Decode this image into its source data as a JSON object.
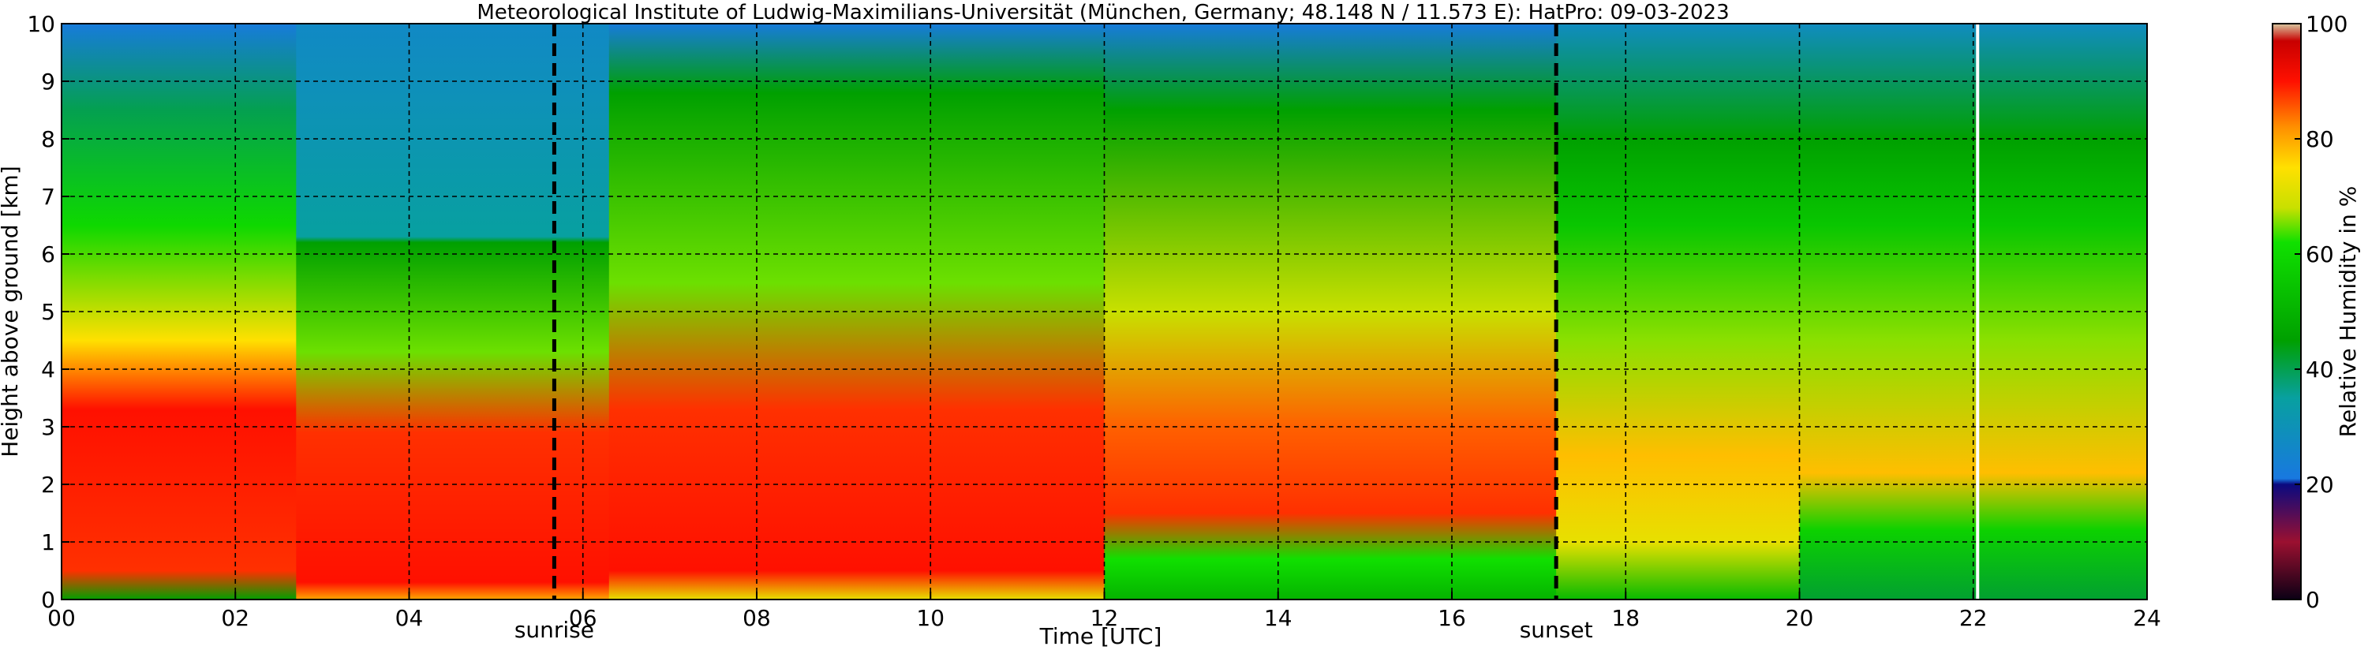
{
  "chart_data": {
    "type": "heatmap",
    "title": "Meteorological Institute of Ludwig-Maximilians-Universität (München, Germany; 48.148 N / 11.573 E):    HatPro: 09-03-2023",
    "xlabel": "Time [UTC]",
    "ylabel": "Height above ground [km]",
    "xlim": [
      0,
      24
    ],
    "ylim": [
      0,
      10
    ],
    "x_ticks": [
      "00",
      "02",
      "04",
      "06",
      "08",
      "10",
      "12",
      "14",
      "16",
      "18",
      "20",
      "22",
      "24"
    ],
    "y_ticks": [
      "0",
      "1",
      "2",
      "3",
      "4",
      "5",
      "6",
      "7",
      "8",
      "9",
      "10"
    ],
    "grid": true,
    "colorbar": {
      "label": "Relative Humidity in %",
      "range": [
        0,
        100
      ],
      "ticks": [
        "0",
        "20",
        "40",
        "60",
        "80",
        "100"
      ]
    },
    "annotations": [
      {
        "label": "sunrise",
        "x_hours": 5.67
      },
      {
        "label": "sunset",
        "x_hours": 17.2
      }
    ],
    "missing_data_line_x_hours": 22.05,
    "humidity_bands_by_period": [
      {
        "from_hours": 0.0,
        "to_hours": 2.7,
        "rh_profile": [
          {
            "height_km": 0,
            "rh": 45
          },
          {
            "height_km": 0.5,
            "rh": 88
          },
          {
            "height_km": 3.3,
            "rh": 90
          },
          {
            "height_km": 4.5,
            "rh": 75
          },
          {
            "height_km": 6.5,
            "rh": 60
          },
          {
            "height_km": 8.5,
            "rh": 40
          },
          {
            "height_km": 10,
            "rh": 22
          }
        ]
      },
      {
        "from_hours": 2.7,
        "to_hours": 6.3,
        "rh_profile": [
          {
            "height_km": 0,
            "rh": 80
          },
          {
            "height_km": 0.3,
            "rh": 90
          },
          {
            "height_km": 2.9,
            "rh": 88
          },
          {
            "height_km": 4.3,
            "rh": 65
          },
          {
            "height_km": 6.2,
            "rh": 45
          },
          {
            "height_km": 6.3,
            "rh": 35
          },
          {
            "height_km": 10,
            "rh": 27
          }
        ]
      },
      {
        "from_hours": 6.3,
        "to_hours": 12.0,
        "rh_profile": [
          {
            "height_km": 0,
            "rh": 72
          },
          {
            "height_km": 0.5,
            "rh": 90
          },
          {
            "height_km": 3.3,
            "rh": 88
          },
          {
            "height_km": 5.5,
            "rh": 65
          },
          {
            "height_km": 8.8,
            "rh": 45
          },
          {
            "height_km": 10,
            "rh": 22
          }
        ]
      },
      {
        "from_hours": 12.0,
        "to_hours": 17.2,
        "rh_profile": [
          {
            "height_km": 0,
            "rh": 50
          },
          {
            "height_km": 0.7,
            "rh": 62
          },
          {
            "height_km": 1.5,
            "rh": 88
          },
          {
            "height_km": 3.0,
            "rh": 85
          },
          {
            "height_km": 5.0,
            "rh": 68
          },
          {
            "height_km": 8.5,
            "rh": 45
          },
          {
            "height_km": 10,
            "rh": 22
          }
        ]
      },
      {
        "from_hours": 17.2,
        "to_hours": 20.0,
        "rh_profile": [
          {
            "height_km": 0,
            "rh": 52
          },
          {
            "height_km": 1.0,
            "rh": 72
          },
          {
            "height_km": 2.5,
            "rh": 78
          },
          {
            "height_km": 4.5,
            "rh": 66
          },
          {
            "height_km": 6.5,
            "rh": 55
          },
          {
            "height_km": 8.0,
            "rh": 45
          },
          {
            "height_km": 10,
            "rh": 28
          }
        ]
      },
      {
        "from_hours": 20.0,
        "to_hours": 24.0,
        "rh_profile": [
          {
            "height_km": 0,
            "rh": 42
          },
          {
            "height_km": 1.2,
            "rh": 58
          },
          {
            "height_km": 2.2,
            "rh": 78
          },
          {
            "height_km": 4.5,
            "rh": 66
          },
          {
            "height_km": 6.5,
            "rh": 55
          },
          {
            "height_km": 8.0,
            "rh": 45
          },
          {
            "height_km": 10,
            "rh": 28
          }
        ]
      }
    ],
    "colormap": [
      {
        "rh": 0,
        "color": "#0b0015"
      },
      {
        "rh": 10,
        "color": "#9b1030"
      },
      {
        "rh": 20,
        "color": "#0a0a80"
      },
      {
        "rh": 21,
        "color": "#1878e0"
      },
      {
        "rh": 35,
        "color": "#08a0a0"
      },
      {
        "rh": 45,
        "color": "#00a000"
      },
      {
        "rh": 62,
        "color": "#10e000"
      },
      {
        "rh": 68,
        "color": "#c8e000"
      },
      {
        "rh": 75,
        "color": "#ffe000"
      },
      {
        "rh": 82,
        "color": "#ff9000"
      },
      {
        "rh": 90,
        "color": "#ff1000"
      },
      {
        "rh": 97,
        "color": "#c80000"
      },
      {
        "rh": 100,
        "color": "#d8c8a0"
      }
    ]
  }
}
